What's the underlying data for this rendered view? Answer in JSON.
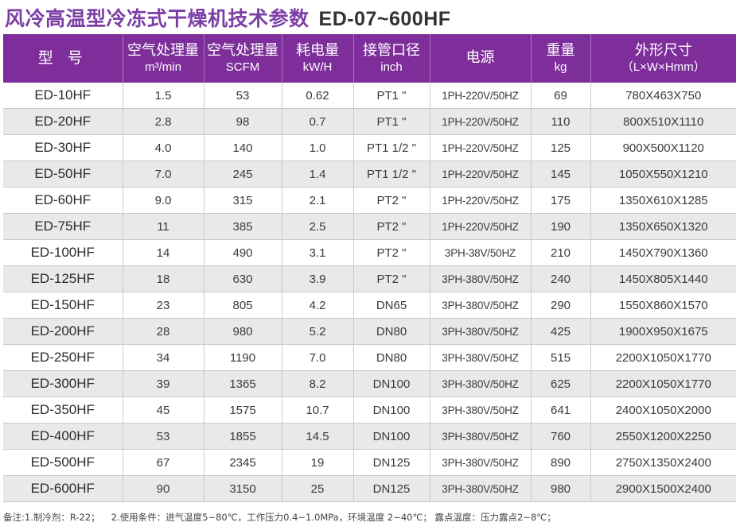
{
  "title": {
    "chinese": "风冷高温型冷冻式干燥机技术参数",
    "model_range": "ED-07~600HF"
  },
  "table": {
    "headers": [
      {
        "main": "型 号",
        "unit": ""
      },
      {
        "main": "空气处理量",
        "unit": "m³/min"
      },
      {
        "main": "空气处理量",
        "unit": "SCFM"
      },
      {
        "main": "耗电量",
        "unit": "kW/H"
      },
      {
        "main": "接管口径",
        "unit": "inch"
      },
      {
        "main": "电源",
        "unit": ""
      },
      {
        "main": "重量",
        "unit": "kg"
      },
      {
        "main": "外形尺寸",
        "unit": "（L×W×Hmm）"
      }
    ],
    "rows": [
      [
        "ED-10HF",
        "1.5",
        "53",
        "0.62",
        "PT1 \"",
        "1PH-220V/50HZ",
        "69",
        "780X463X750"
      ],
      [
        "ED-20HF",
        "2.8",
        "98",
        "0.7",
        "PT1 \"",
        "1PH-220V/50HZ",
        "110",
        "800X510X1110"
      ],
      [
        "ED-30HF",
        "4.0",
        "140",
        "1.0",
        "PT1 1/2 \"",
        "1PH-220V/50HZ",
        "125",
        "900X500X1120"
      ],
      [
        "ED-50HF",
        "7.0",
        "245",
        "1.4",
        "PT1 1/2 \"",
        "1PH-220V/50HZ",
        "145",
        "1050X550X1210"
      ],
      [
        "ED-60HF",
        "9.0",
        "315",
        "2.1",
        "PT2 \"",
        "1PH-220V/50HZ",
        "175",
        "1350X610X1285"
      ],
      [
        "ED-75HF",
        "11",
        "385",
        "2.5",
        "PT2 \"",
        "1PH-220V/50HZ",
        "190",
        "1350X650X1320"
      ],
      [
        "ED-100HF",
        "14",
        "490",
        "3.1",
        "PT2 \"",
        "3PH-38V/50HZ",
        "210",
        "1450X790X1360"
      ],
      [
        "ED-125HF",
        "18",
        "630",
        "3.9",
        "PT2 \"",
        "3PH-380V/50HZ",
        "240",
        "1450X805X1440"
      ],
      [
        "ED-150HF",
        "23",
        "805",
        "4.2",
        "DN65",
        "3PH-380V/50HZ",
        "290",
        "1550X860X1570"
      ],
      [
        "ED-200HF",
        "28",
        "980",
        "5.2",
        "DN80",
        "3PH-380V/50HZ",
        "425",
        "1900X950X1675"
      ],
      [
        "ED-250HF",
        "34",
        "1190",
        "7.0",
        "DN80",
        "3PH-380V/50HZ",
        "515",
        "2200X1050X1770"
      ],
      [
        "ED-300HF",
        "39",
        "1365",
        "8.2",
        "DN100",
        "3PH-380V/50HZ",
        "625",
        "2200X1050X1770"
      ],
      [
        "ED-350HF",
        "45",
        "1575",
        "10.7",
        "DN100",
        "3PH-380V/50HZ",
        "641",
        "2400X1050X2000"
      ],
      [
        "ED-400HF",
        "53",
        "1855",
        "14.5",
        "DN100",
        "3PH-380V/50HZ",
        "760",
        "2550X1200X2250"
      ],
      [
        "ED-500HF",
        "67",
        "2345",
        "19",
        "DN125",
        "3PH-380V/50HZ",
        "890",
        "2750X1350X2400"
      ],
      [
        "ED-600HF",
        "90",
        "3150",
        "25",
        "DN125",
        "3PH-380V/50HZ",
        "980",
        "2900X1500X2400"
      ]
    ]
  },
  "note": {
    "part1": "备注:1.制冷剂：R-22；",
    "part2": "2.使用条件：进气温度5~80℃，工作压力0.4~1.0MPa，环境温度 2~40℃；  露点温度：压力露点2~8℃；"
  },
  "colors": {
    "header_bg": "#7d2e9b",
    "title_purple": "#7b3fa5",
    "row_stripe": "#e9e9e9"
  }
}
